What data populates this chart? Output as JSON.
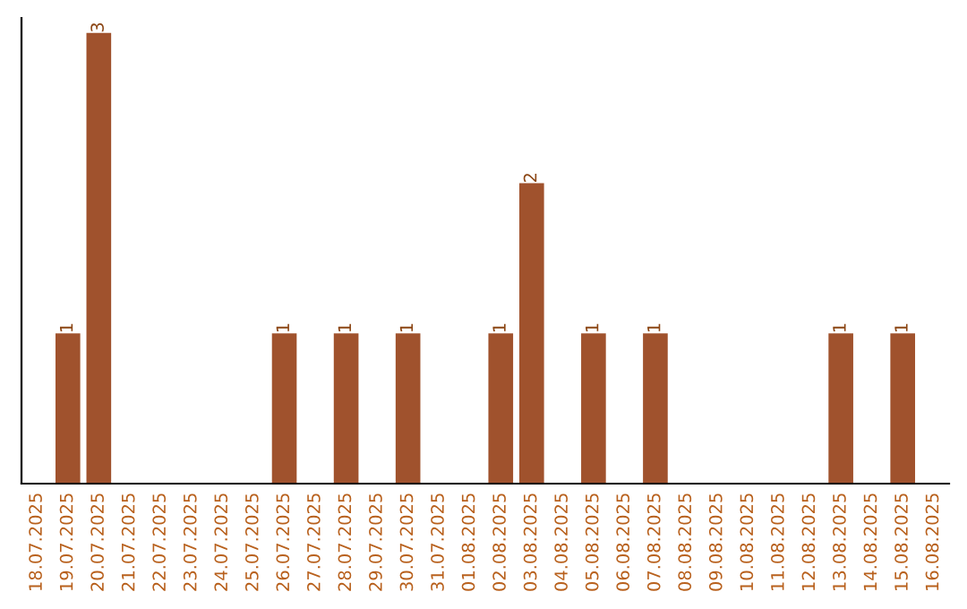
{
  "chart_data": {
    "type": "bar",
    "categories": [
      "18.07.2025",
      "19.07.2025",
      "20.07.2025",
      "21.07.2025",
      "22.07.2025",
      "23.07.2025",
      "24.07.2025",
      "25.07.2025",
      "26.07.2025",
      "27.07.2025",
      "28.07.2025",
      "29.07.2025",
      "30.07.2025",
      "31.07.2025",
      "01.08.2025",
      "02.08.2025",
      "03.08.2025",
      "04.08.2025",
      "05.08.2025",
      "06.08.2025",
      "07.08.2025",
      "08.08.2025",
      "09.08.2025",
      "10.08.2025",
      "11.08.2025",
      "12.08.2025",
      "13.08.2025",
      "14.08.2025",
      "15.08.2025",
      "16.08.2025"
    ],
    "values": [
      0,
      1,
      3,
      0,
      0,
      0,
      0,
      0,
      1,
      0,
      1,
      0,
      1,
      0,
      0,
      1,
      2,
      0,
      1,
      0,
      1,
      0,
      0,
      0,
      0,
      0,
      1,
      0,
      1,
      0
    ],
    "value_labels": [
      null,
      "1",
      "3",
      null,
      null,
      null,
      null,
      null,
      "1",
      null,
      "1",
      null,
      "1",
      null,
      null,
      "1",
      "2",
      null,
      "1",
      null,
      "1",
      null,
      null,
      null,
      null,
      null,
      "1",
      null,
      "1",
      null
    ],
    "color": "#a0522d",
    "ylim": [
      0,
      3.1
    ],
    "tick_labels": "x",
    "grid": false,
    "legend": false
  }
}
